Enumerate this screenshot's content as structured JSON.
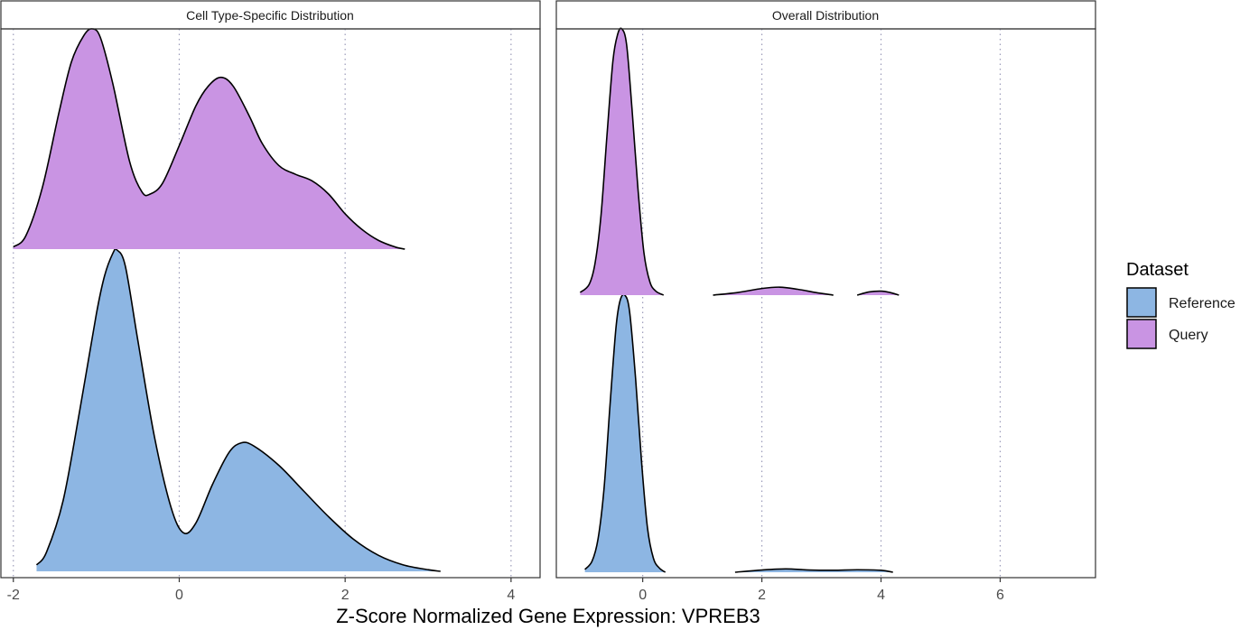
{
  "chart_data": {
    "type": "area",
    "subtype": "ridgeline density",
    "xlabel": "Z-Score Normalized Gene Expression: VPREB3",
    "legend": {
      "title": "Dataset",
      "position": "right",
      "entries": [
        {
          "name": "Reference",
          "color": "#8DB6E3"
        },
        {
          "name": "Query",
          "color": "#C994E3"
        }
      ]
    },
    "grid": "vertical dotted at major x ticks",
    "panels": [
      {
        "strip_label": "Cell Type-Specific Distribution",
        "xlim": [
          -2.15,
          4.35
        ],
        "xticks": [
          -2,
          0,
          2,
          4
        ],
        "xtick_labels": [
          "-2",
          "0",
          "2",
          "4"
        ],
        "series": [
          {
            "name": "Reference",
            "x": [
              -1.72,
              -1.6,
              -1.4,
              -1.2,
              -1.0,
              -0.9,
              -0.8,
              -0.75,
              -0.65,
              -0.5,
              -0.3,
              -0.1,
              0.05,
              0.2,
              0.4,
              0.6,
              0.75,
              0.9,
              1.2,
              1.5,
              1.8,
              2.1,
              2.4,
              2.7,
              3.0,
              3.15
            ],
            "y": [
              0.02,
              0.06,
              0.22,
              0.5,
              0.8,
              0.92,
              0.99,
              1.0,
              0.95,
              0.72,
              0.42,
              0.2,
              0.12,
              0.15,
              0.27,
              0.37,
              0.4,
              0.39,
              0.33,
              0.25,
              0.17,
              0.1,
              0.05,
              0.02,
              0.005,
              0.0
            ]
          },
          {
            "name": "Query",
            "x": [
              -2.0,
              -1.85,
              -1.65,
              -1.45,
              -1.3,
              -1.15,
              -1.05,
              -0.95,
              -0.8,
              -0.6,
              -0.45,
              -0.35,
              -0.2,
              0.0,
              0.2,
              0.35,
              0.5,
              0.65,
              0.85,
              1.0,
              1.2,
              1.4,
              1.6,
              1.8,
              2.0,
              2.2,
              2.4,
              2.6,
              2.72
            ],
            "y": [
              0.01,
              0.06,
              0.28,
              0.62,
              0.85,
              0.97,
              1.0,
              0.96,
              0.75,
              0.4,
              0.26,
              0.25,
              0.3,
              0.47,
              0.65,
              0.74,
              0.78,
              0.74,
              0.6,
              0.48,
              0.38,
              0.34,
              0.31,
              0.25,
              0.16,
              0.09,
              0.04,
              0.01,
              0.0
            ]
          }
        ]
      },
      {
        "strip_label": "Overall Distribution",
        "xlim": [
          -1.45,
          7.6
        ],
        "xticks": [
          0,
          2,
          4,
          6
        ],
        "xtick_labels": [
          "0",
          "2",
          "4",
          "6"
        ],
        "series": [
          {
            "name": "Reference",
            "x": [
              -0.97,
              -0.85,
              -0.75,
              -0.65,
              -0.55,
              -0.45,
              -0.38,
              -0.3,
              -0.22,
              -0.12,
              -0.02,
              0.08,
              0.18,
              0.28,
              0.38
            ],
            "y": [
              0.01,
              0.04,
              0.12,
              0.3,
              0.6,
              0.88,
              0.98,
              1.0,
              0.94,
              0.7,
              0.4,
              0.16,
              0.05,
              0.015,
              0.0
            ],
            "segments": [
              {
                "x": [
                  1.55,
                  2.0,
                  2.4,
                  2.8,
                  3.2,
                  3.6,
                  4.0,
                  4.2
                ],
                "y": [
                  0.0,
                  0.008,
                  0.012,
                  0.008,
                  0.007,
                  0.009,
                  0.007,
                  0.0
                ]
              }
            ]
          },
          {
            "name": "Query",
            "x": [
              -1.05,
              -0.9,
              -0.8,
              -0.7,
              -0.6,
              -0.5,
              -0.42,
              -0.35,
              -0.27,
              -0.18,
              -0.08,
              0.02,
              0.12,
              0.22,
              0.35
            ],
            "y": [
              0.01,
              0.04,
              0.12,
              0.3,
              0.6,
              0.88,
              0.98,
              1.0,
              0.94,
              0.7,
              0.4,
              0.16,
              0.05,
              0.015,
              0.0
            ],
            "segments": [
              {
                "x": [
                  1.18,
                  1.6,
                  2.0,
                  2.3,
                  2.6,
                  2.9,
                  3.2
                ],
                "y": [
                  0.0,
                  0.01,
                  0.025,
                  0.03,
                  0.022,
                  0.01,
                  0.0
                ]
              },
              {
                "x": [
                  3.6,
                  3.8,
                  4.0,
                  4.15,
                  4.3
                ],
                "y": [
                  0.0,
                  0.012,
                  0.015,
                  0.01,
                  0.0
                ]
              }
            ]
          }
        ]
      }
    ]
  }
}
